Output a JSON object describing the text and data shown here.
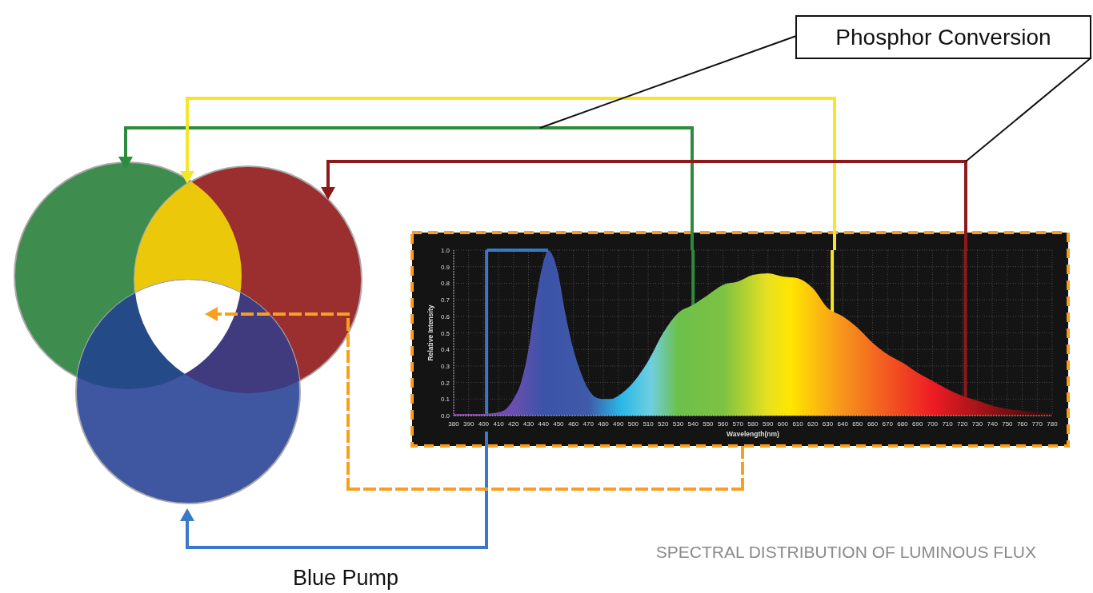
{
  "chart_data": {
    "type": "area",
    "xlabel": "Wavelength(nm)",
    "ylabel": "Relative Intensity",
    "annotations": [
      "Phosphor Conversion",
      "Blue Pump",
      "SPECTRAL DISTRIBUTION OF LUMINOUS FLUX"
    ],
    "series": [
      {
        "x": [
          380,
          390,
          400,
          410,
          415,
          420,
          425,
          430,
          435,
          440,
          443,
          447,
          450,
          455,
          460,
          465,
          470,
          475,
          480,
          485,
          490,
          500,
          510,
          520,
          530,
          540,
          550,
          560,
          570,
          580,
          590,
          600,
          610,
          620,
          630,
          640,
          650,
          660,
          670,
          680,
          690,
          700,
          710,
          720,
          730,
          740,
          750,
          760,
          770,
          780
        ],
        "values": [
          0.01,
          0.01,
          0.01,
          0.02,
          0.04,
          0.1,
          0.2,
          0.4,
          0.7,
          0.93,
          1.0,
          0.95,
          0.85,
          0.6,
          0.4,
          0.26,
          0.16,
          0.11,
          0.1,
          0.1,
          0.12,
          0.2,
          0.33,
          0.5,
          0.62,
          0.67,
          0.73,
          0.79,
          0.81,
          0.85,
          0.86,
          0.84,
          0.83,
          0.77,
          0.65,
          0.6,
          0.53,
          0.44,
          0.37,
          0.32,
          0.26,
          0.21,
          0.16,
          0.12,
          0.09,
          0.06,
          0.04,
          0.03,
          0.02,
          0.01
        ]
      },
      {
        "type": "line",
        "x": [
          402,
          443
        ],
        "values": [
          1,
          1
        ],
        "color": "#3a78c8"
      }
    ],
    "ref_lines": [
      {
        "axis": "x",
        "value": 402,
        "color": "#3a78c8"
      },
      {
        "axis": "x",
        "value": 540,
        "color": "#2e8a3c"
      },
      {
        "axis": "x",
        "value": 633,
        "color": "#f5e62a"
      },
      {
        "axis": "x",
        "value": 722,
        "color": "#8c1a1a"
      }
    ],
    "xlim": [
      380,
      780
    ],
    "xticks": [
      380,
      390,
      400,
      410,
      420,
      430,
      440,
      450,
      460,
      470,
      480,
      490,
      500,
      510,
      520,
      530,
      540,
      550,
      560,
      570,
      580,
      590,
      600,
      610,
      620,
      630,
      640,
      650,
      660,
      670,
      680,
      690,
      700,
      710,
      720,
      730,
      740,
      750,
      760,
      770,
      780
    ],
    "ylim": [
      0,
      1
    ],
    "yticks": [
      {
        "value": 0,
        "label": "0.0"
      },
      {
        "value": 0.1,
        "label": "0.1"
      },
      {
        "value": 0.2,
        "label": "0.2"
      },
      {
        "value": 0.3,
        "label": "0.3"
      },
      {
        "value": 0.4,
        "label": "0.4"
      },
      {
        "value": 0.5,
        "label": "0.5"
      },
      {
        "value": 0.6,
        "label": "0.6"
      },
      {
        "value": 0.7,
        "label": "0.7"
      },
      {
        "value": 0.8,
        "label": "0.8"
      },
      {
        "value": 0.9,
        "label": "0.9"
      },
      {
        "value": 1,
        "label": "1.0"
      }
    ],
    "grid": true
  }
}
